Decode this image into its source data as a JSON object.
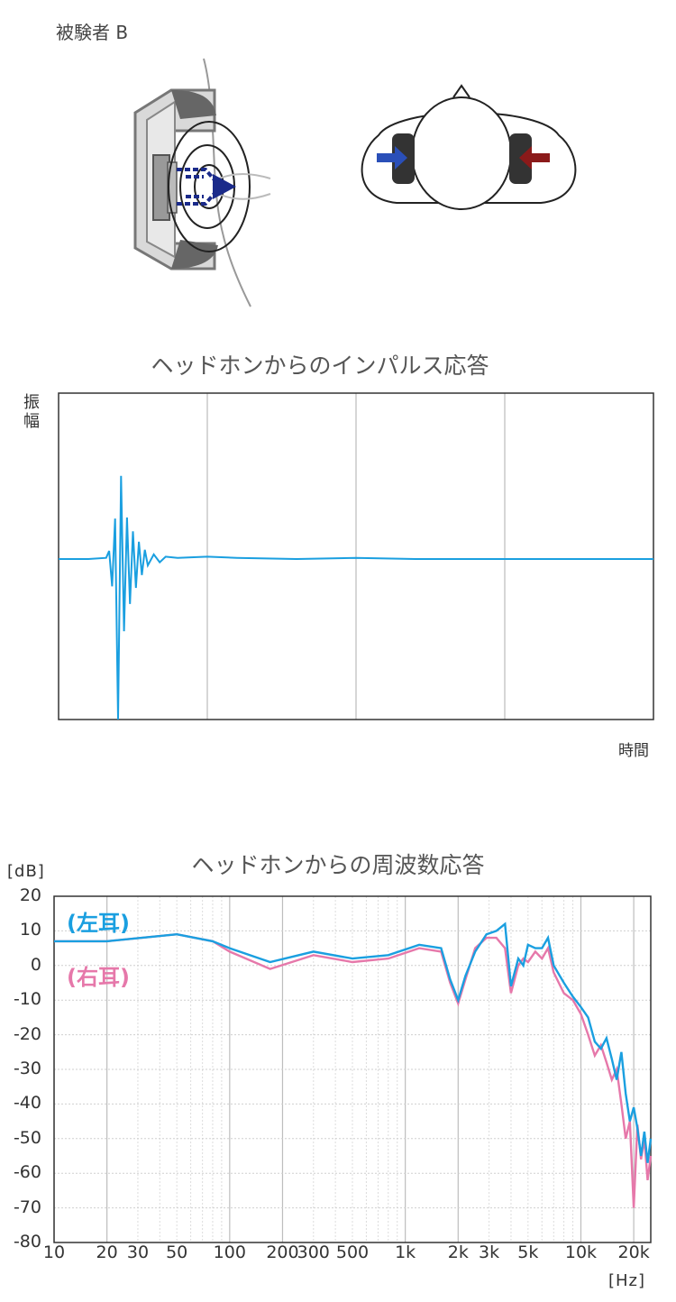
{
  "subject_label": "被験者 B",
  "colors": {
    "left_ear": "#1a9fe0",
    "right_ear": "#e678aa",
    "arrow_left": "#2a4fb8",
    "arrow_right": "#8b1a1a",
    "driver_dash": "#1a2a8a"
  },
  "impulse": {
    "title": "ヘッドホンからのインパルス応答",
    "y_label": "振幅",
    "x_label": "時間"
  },
  "chart_data": [
    {
      "type": "line",
      "title": "ヘッドホンからのインパルス応答",
      "xlabel": "時間",
      "ylabel": "振幅",
      "grid": true,
      "ylim": [
        -1,
        1
      ],
      "x": [
        0.0,
        0.05,
        0.08,
        0.085,
        0.09,
        0.095,
        0.1,
        0.105,
        0.11,
        0.115,
        0.12,
        0.125,
        0.13,
        0.135,
        0.14,
        0.145,
        0.15,
        0.16,
        0.17,
        0.18,
        0.2,
        0.25,
        0.3,
        0.4,
        0.5,
        0.6,
        0.8,
        1.0
      ],
      "series": [
        {
          "values": [
            0.0,
            0.0,
            0.01,
            0.07,
            -0.17,
            0.35,
            -1.0,
            0.72,
            -0.45,
            0.36,
            -0.28,
            0.24,
            -0.18,
            0.15,
            -0.1,
            0.08,
            -0.04,
            0.04,
            -0.02,
            0.02,
            0.01,
            0.02,
            0.01,
            0.0,
            0.01,
            0.0,
            0.0,
            0.0
          ]
        }
      ]
    },
    {
      "type": "line",
      "title": "ヘッドホンからの周波数応答",
      "ylabel": "[dB]",
      "xlabel": "[Hz]",
      "x_scale": "log",
      "xlim": [
        10,
        25000
      ],
      "ylim": [
        -80,
        20
      ],
      "grid": true,
      "yticks": [
        "20",
        "10",
        "0",
        "-10",
        "-20",
        "-30",
        "-40",
        "-50",
        "-60",
        "-70",
        "-80"
      ],
      "xticks": [
        "10",
        "20",
        "30",
        "50",
        "100",
        "200",
        "300",
        "500",
        "1k",
        "2k",
        "3k",
        "5k",
        "10k",
        "20k"
      ],
      "x": [
        10,
        20,
        50,
        80,
        100,
        170,
        300,
        500,
        800,
        1200,
        1600,
        1800,
        2000,
        2200,
        2500,
        2900,
        3300,
        3700,
        4000,
        4400,
        4700,
        5000,
        5500,
        6000,
        6500,
        7000,
        8000,
        9000,
        10000,
        11000,
        12000,
        13000,
        14000,
        15000,
        16000,
        17000,
        18000,
        19000,
        20000,
        21000,
        22000,
        23000,
        24000,
        25000
      ],
      "series": [
        {
          "name": "(左耳)",
          "values": [
            7,
            7,
            9,
            7,
            5,
            1,
            4,
            2,
            3,
            6,
            5,
            -4,
            -10,
            -3,
            4,
            9,
            10,
            12,
            -6,
            2,
            0,
            6,
            5,
            5,
            8,
            0,
            -5,
            -9,
            -12,
            -15,
            -22,
            -24,
            -21,
            -27,
            -33,
            -25,
            -37,
            -45,
            -41,
            -47,
            -55,
            -48,
            -57,
            -50
          ]
        },
        {
          "name": "(右耳)",
          "values": [
            7,
            7,
            9,
            7,
            4,
            -1,
            3,
            1,
            2,
            5,
            4,
            -5,
            -11,
            -4,
            5,
            8,
            8,
            5,
            -8,
            0,
            2,
            1,
            4,
            2,
            5,
            -2,
            -8,
            -10,
            -14,
            -20,
            -26,
            -23,
            -28,
            -33,
            -30,
            -40,
            -50,
            -45,
            -70,
            -46,
            -56,
            -50,
            -62,
            -55
          ]
        }
      ]
    }
  ],
  "freq": {
    "title": "ヘッドホンからの周波数応答",
    "y_unit": "[dB]",
    "x_unit": "[Hz]",
    "legend_left": "(左耳)",
    "legend_right": "(右耳)",
    "yticks": [
      "20",
      "10",
      "0",
      "-10",
      "-20",
      "-30",
      "-40",
      "-50",
      "-60",
      "-70",
      "-80"
    ],
    "xticks": [
      "10",
      "20",
      "30",
      "50",
      "100",
      "200",
      "300",
      "500",
      "1k",
      "2k",
      "3k",
      "5k",
      "10k",
      "20k"
    ]
  }
}
